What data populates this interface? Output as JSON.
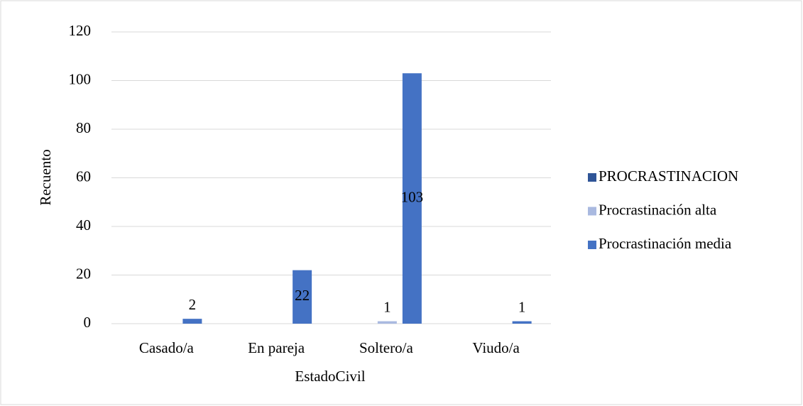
{
  "chart_data": {
    "type": "bar",
    "x_label": "EstadoCivil",
    "y_label": "Recuento",
    "categories": [
      "Casado/a",
      "En pareja",
      "Soltero/a",
      "Viudo/a"
    ],
    "series": [
      {
        "name": "PROCRASTINACION",
        "color": "#2f5597",
        "values": [
          null,
          null,
          null,
          null
        ]
      },
      {
        "name": "Procrastinación alta",
        "color": "#a9b9e0",
        "values": [
          null,
          null,
          1,
          null
        ]
      },
      {
        "name": "Procrastinación media",
        "color": "#4472c4",
        "values": [
          2,
          22,
          103,
          1
        ]
      }
    ],
    "ylim": [
      0,
      120
    ],
    "yticks": [
      0,
      20,
      40,
      60,
      80,
      100,
      120
    ],
    "grid": true,
    "legend": "right"
  }
}
